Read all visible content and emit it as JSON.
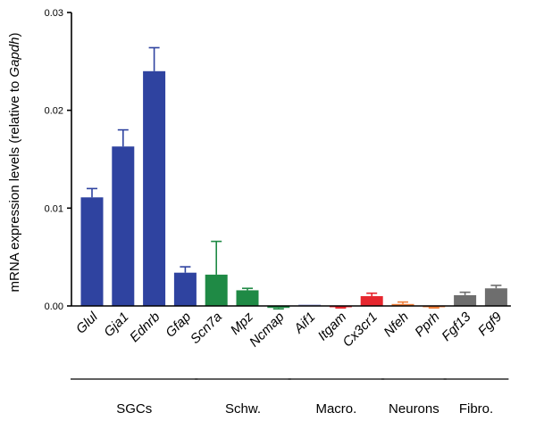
{
  "chart_data": {
    "type": "bar",
    "ylabel_parts": [
      "mRNA expression levels (relative to ",
      "Gapdh",
      ")"
    ],
    "xlabel": "",
    "ylim": [
      0,
      0.03
    ],
    "yticks": [
      {
        "value": 0,
        "label": "0.00"
      },
      {
        "value": 0.01,
        "label": "0.01"
      },
      {
        "value": 0.02,
        "label": "0.02"
      },
      {
        "value": 0.03,
        "label": "0.03"
      }
    ],
    "grid": false,
    "legend": "none",
    "categories": [
      "Glul",
      "Gja1",
      "Ednrb",
      "Gfap",
      "Scn7a",
      "Mpz",
      "Ncmap",
      "Aif1",
      "Itgam",
      "Cx3cr1",
      "Nfeh",
      "Pprh",
      "Fgf13",
      "Fgf9"
    ],
    "values": [
      0.0111,
      0.0163,
      0.024,
      0.0034,
      0.0032,
      0.0016,
      -0.0002,
      0.0,
      -0.0001,
      0.001,
      0.0002,
      -0.0001,
      0.0011,
      0.0018
    ],
    "errors": [
      0.0009,
      0.0017,
      0.0024,
      0.0006,
      0.0034,
      0.0002,
      0.0001,
      0.0,
      0.0001,
      0.0003,
      0.0002,
      0.0001,
      0.0003,
      0.0003
    ],
    "bar_colors": [
      "#2f43a0",
      "#2f43a0",
      "#2f43a0",
      "#2f43a0",
      "#1f8a45",
      "#1f8a45",
      "#1f8a45",
      "#9aa0d8",
      "#e6262e",
      "#e6262e",
      "#f07f3a",
      "#f07f3a",
      "#6e6e6e",
      "#6e6e6e"
    ],
    "groups": [
      {
        "label": "SGCs",
        "first": 0,
        "last": 3
      },
      {
        "label": "Schw.",
        "first": 4,
        "last": 6
      },
      {
        "label": "Macro.",
        "first": 7,
        "last": 9
      },
      {
        "label": "Neurons",
        "first": 10,
        "last": 11
      },
      {
        "label": "Fibro.",
        "first": 12,
        "last": 13
      }
    ]
  }
}
